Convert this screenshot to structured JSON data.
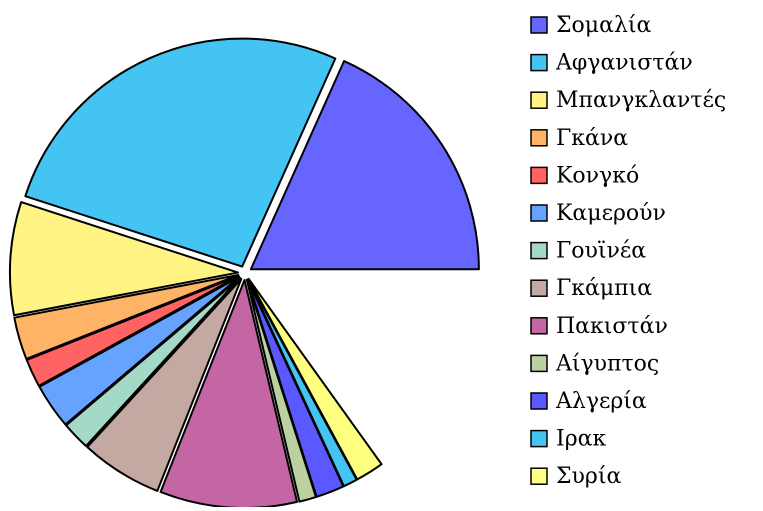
{
  "chart_data": {
    "type": "pie",
    "categories": [
      "Σομαλία",
      "Αφγανιστάν",
      "Μπανγκλαντές",
      "Γκάνα",
      "Κονγκό",
      "Καμερούν",
      "Γουϊνέα",
      "Γκάμπια",
      "Πακιστάν",
      "Αίγυπτος",
      "Αλγερία",
      "Ιρακ",
      "Συρία"
    ],
    "values": [
      0.183,
      0.267,
      0.08,
      0.03,
      0.02,
      0.032,
      0.02,
      0.058,
      0.097,
      0.012,
      0.02,
      0.01,
      0.02
    ],
    "colors": [
      "#6666ff",
      "#44c4f2",
      "#fff383",
      "#ffb366",
      "#ff6363",
      "#66a3ff",
      "#a3d9c6",
      "#c4a8a2",
      "#c466a3",
      "#bcd1a0",
      "#5959ff",
      "#44c4f2",
      "#ffff80"
    ],
    "legend": "right"
  }
}
